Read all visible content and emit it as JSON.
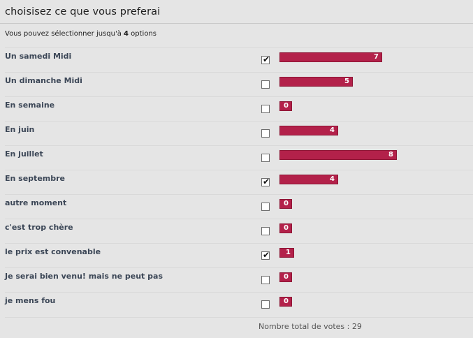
{
  "poll": {
    "title": "choisisez ce que vous preferai",
    "subtitle_prefix": "Vous pouvez sélectionner jusqu'à",
    "max_options": "4",
    "subtitle_suffix": "options",
    "check_glyph": "✔",
    "options": [
      {
        "label": "Un samedi Midi",
        "votes": 7,
        "checked": true
      },
      {
        "label": "Un dimanche Midi",
        "votes": 5,
        "checked": false
      },
      {
        "label": "En semaine",
        "votes": 0,
        "checked": false
      },
      {
        "label": "En juin",
        "votes": 4,
        "checked": false
      },
      {
        "label": "En juillet",
        "votes": 8,
        "checked": false
      },
      {
        "label": "En septembre",
        "votes": 4,
        "checked": true
      },
      {
        "label": "autre moment",
        "votes": 0,
        "checked": false
      },
      {
        "label": "c'est trop chère",
        "votes": 0,
        "checked": false
      },
      {
        "label": "le prix est convenable",
        "votes": 1,
        "checked": true
      },
      {
        "label": "Je serai bien venu! mais ne peut pas",
        "votes": 0,
        "checked": false
      },
      {
        "label": "je mens fou",
        "votes": 0,
        "checked": false
      }
    ],
    "total_text": "Nombre total de votes : 29",
    "bar_color": "#b3214a"
  }
}
